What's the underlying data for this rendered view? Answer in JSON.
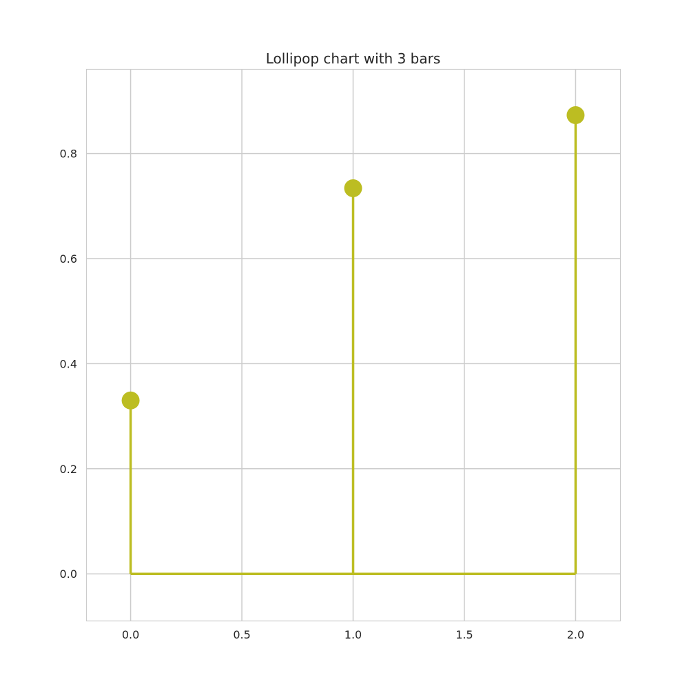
{
  "chart_data": {
    "type": "lollipop",
    "title": "Lollipop chart with 3 bars",
    "xlabel": "",
    "ylabel": "",
    "x": [
      0,
      1,
      2
    ],
    "values": [
      0.33,
      0.734,
      0.873
    ],
    "baseline": 0,
    "xlim": [
      -0.2,
      2.2
    ],
    "ylim": [
      -0.089,
      0.961
    ],
    "x_ticks": [
      "0.0",
      "0.5",
      "1.0",
      "1.5",
      "2.0"
    ],
    "y_ticks": [
      "0.0",
      "0.2",
      "0.4",
      "0.6",
      "0.8"
    ],
    "grid": true,
    "legend": "none",
    "colors": {
      "series": "#bcbd22",
      "grid": "#cccccc",
      "frame": "#cccccc",
      "text": "#262626"
    }
  }
}
